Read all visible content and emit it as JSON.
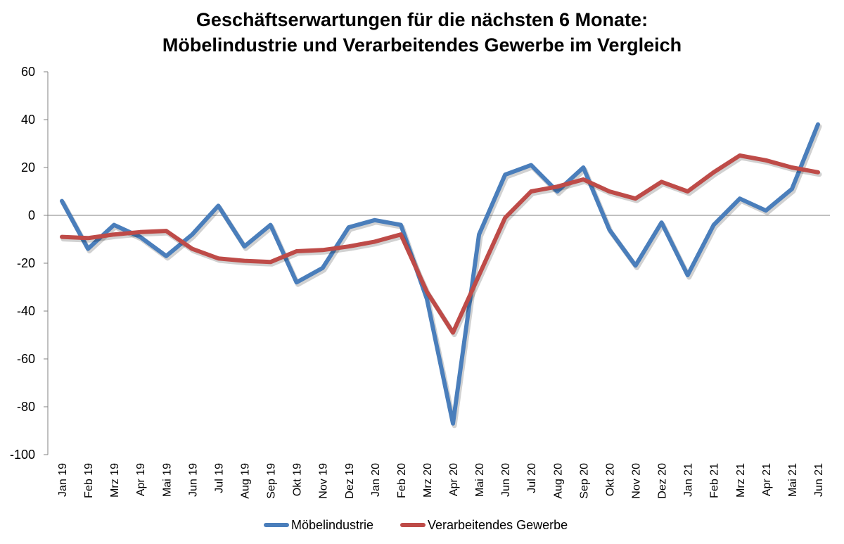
{
  "chart_data": {
    "type": "line",
    "title": [
      "Geschäftserwartungen für die nächsten 6 Monate:",
      "Möbelindustrie und Verarbeitendes Gewerbe im Vergleich"
    ],
    "xlabel": "",
    "ylabel": "",
    "ylim": [
      -100,
      60
    ],
    "yticks": [
      60,
      40,
      20,
      0,
      -20,
      -40,
      -60,
      -80,
      -100
    ],
    "grid": false,
    "legend_position": "bottom",
    "categories": [
      "Jan 19",
      "Feb 19",
      "Mrz 19",
      "Apr 19",
      "Mai 19",
      "Jun 19",
      "Jul 19",
      "Aug 19",
      "Sep 19",
      "Okt 19",
      "Nov 19",
      "Dez 19",
      "Jan 20",
      "Feb 20",
      "Mrz 20",
      "Apr 20",
      "Mai 20",
      "Jun 20",
      "Jul 20",
      "Aug 20",
      "Sep 20",
      "Okt 20",
      "Nov 20",
      "Dez 20",
      "Jan 21",
      "Feb 21",
      "Mrz 21",
      "Apr 21",
      "Mai 21",
      "Jun 21"
    ],
    "series": [
      {
        "name": "Möbelindustrie",
        "color": "#4A7EBB",
        "values": [
          6,
          -14,
          -4,
          -9,
          -17,
          -8,
          4,
          -13,
          -4,
          -28,
          -22,
          -5,
          -2,
          -4,
          -35,
          -87,
          -8,
          17,
          21,
          10,
          20,
          -6,
          -21,
          -3,
          -25,
          -4,
          7,
          2,
          11,
          38
        ]
      },
      {
        "name": "Verarbeitendes Gewerbe",
        "color": "#BE4B48",
        "values": [
          -9,
          -9.5,
          -8,
          -7,
          -6.5,
          -14,
          -18,
          -19,
          -19.5,
          -15,
          -14.5,
          -13,
          -11,
          -8,
          -32,
          -49,
          -25,
          -1,
          10,
          12,
          15,
          10,
          7,
          14,
          10,
          18,
          25,
          23,
          20,
          18
        ]
      }
    ]
  }
}
